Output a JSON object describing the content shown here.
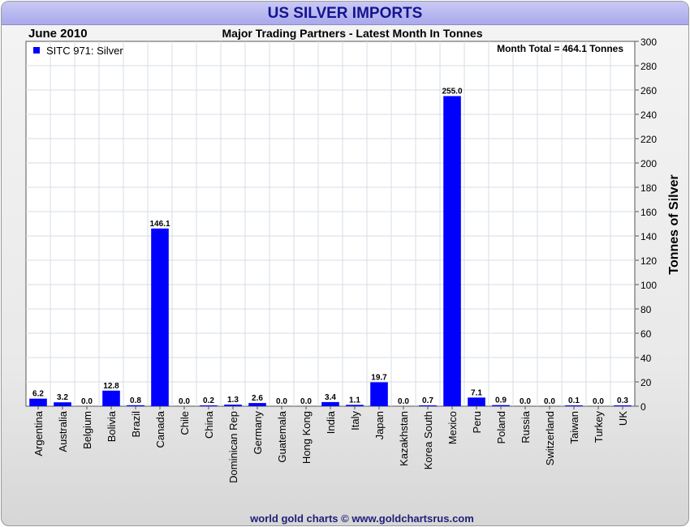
{
  "window": {
    "title": "US SILVER IMPORTS",
    "date_label": "June 2010",
    "subtitle": "Major Trading Partners - Latest Month In Tonnes",
    "month_total": "Month Total = 464.1 Tonnes",
    "footer": "world gold charts © www.goldchartsrus.com"
  },
  "chart_data": {
    "type": "bar",
    "title": "US SILVER IMPORTS",
    "subtitle": "Major Trading Partners - Latest Month In Tonnes",
    "xlabel": "",
    "ylabel": "Tonnes of Silver",
    "ylim": [
      0,
      300
    ],
    "ytick_step": 20,
    "grid": true,
    "legend_position": "top-left",
    "categories": [
      "Argentina",
      "Australia",
      "Belgium",
      "Bolivia",
      "Brazil",
      "Canada",
      "Chile",
      "China",
      "Dominican Rep",
      "Germany",
      "Guatemala",
      "Hong Kong",
      "India",
      "Italy",
      "Japan",
      "Kazakhstan",
      "Korea South",
      "Mexico",
      "Peru",
      "Poland",
      "Russia",
      "Switzerland",
      "Taiwan",
      "Turkey",
      "UK"
    ],
    "series": [
      {
        "name": "SITC 971: Silver",
        "color": "#0000ff",
        "values": [
          6.2,
          3.2,
          0.0,
          12.8,
          0.8,
          146.1,
          0.0,
          0.2,
          1.3,
          2.6,
          0.0,
          0.0,
          3.4,
          1.1,
          19.7,
          0.0,
          0.7,
          255.0,
          7.1,
          0.9,
          0.0,
          0.0,
          0.1,
          0.0,
          0.3
        ]
      }
    ]
  }
}
